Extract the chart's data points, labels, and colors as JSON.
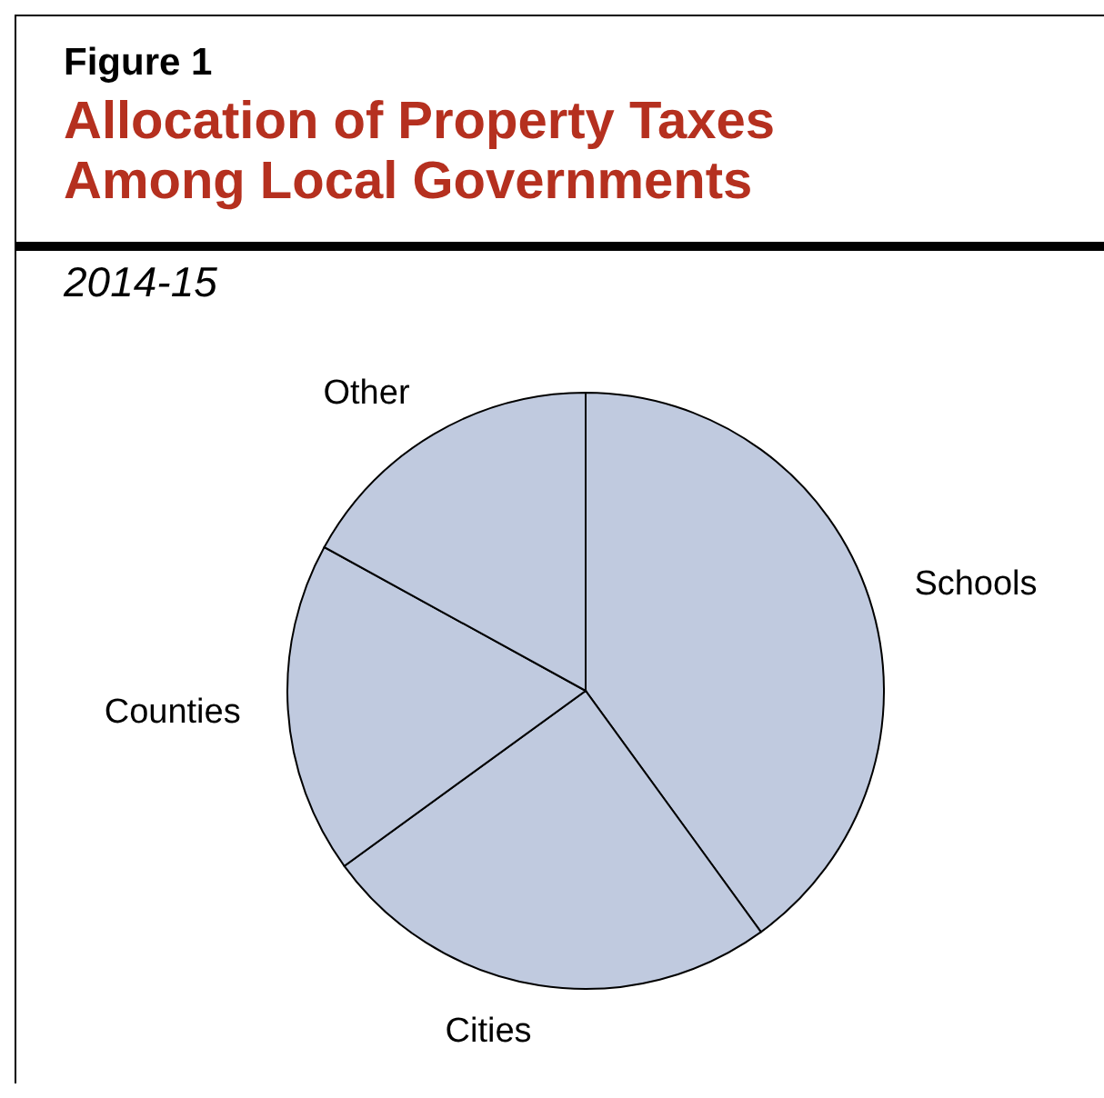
{
  "chart_data": {
    "type": "pie",
    "title": "Allocation of Property Taxes Among Local Governments",
    "subtitle": "2014-15",
    "annotations": [
      "Figure 1"
    ],
    "categories": [
      "Schools",
      "Cities",
      "Counties",
      "Other"
    ],
    "values": [
      40,
      25,
      18,
      17
    ],
    "colors": [
      "#c0cadf",
      "#c0cadf",
      "#c0cadf",
      "#c0cadf"
    ]
  }
}
